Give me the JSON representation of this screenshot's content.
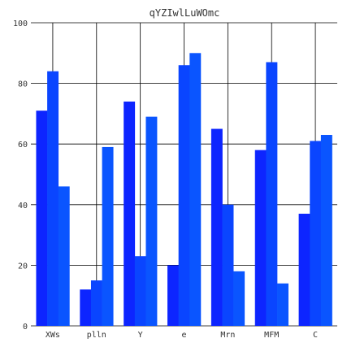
{
  "chart_data": {
    "type": "bar",
    "title": "qYZIwlLuWOmc",
    "xlabel": "",
    "ylabel": "",
    "categories": [
      "XWs",
      "plln",
      "Y",
      "e",
      "Mrn",
      "MFM",
      "C"
    ],
    "series": [
      {
        "values": [
          71,
          12,
          74,
          20,
          65,
          58,
          37
        ],
        "color": "#0d25ff"
      },
      {
        "values": [
          84,
          15,
          23,
          86,
          40,
          87,
          61
        ],
        "color": "#0a45ff"
      },
      {
        "values": [
          46,
          59,
          69,
          90,
          18,
          14,
          63
        ],
        "color": "#0a55ff"
      }
    ],
    "ylim": [
      0,
      100
    ],
    "yticks": [
      0,
      20,
      40,
      60,
      80,
      100
    ],
    "grid": true,
    "legend": "none"
  }
}
